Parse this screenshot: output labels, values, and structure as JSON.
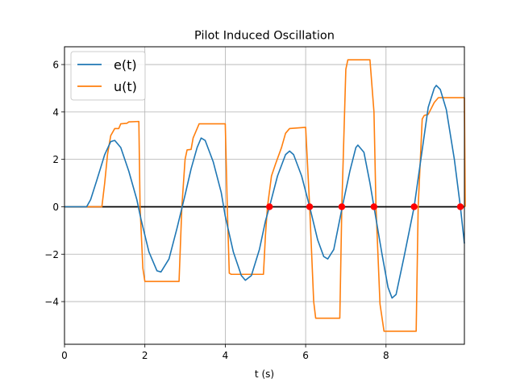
{
  "chart_data": {
    "type": "line",
    "title": "Pilot Induced Oscillation",
    "xlabel": "t (s)",
    "ylabel": "",
    "xlim": [
      0,
      9.95
    ],
    "ylim": [
      -5.8,
      6.75
    ],
    "xticks": [
      0,
      2,
      4,
      6,
      8
    ],
    "yticks": [
      -4,
      -2,
      0,
      2,
      4,
      6
    ],
    "grid": true,
    "legend": "top-left",
    "series": [
      {
        "name": "e(t)",
        "color": "#1f77b4",
        "points": [
          [
            0,
            0
          ],
          [
            0.55,
            0
          ],
          [
            0.65,
            0.3
          ],
          [
            0.8,
            1.1
          ],
          [
            1.0,
            2.2
          ],
          [
            1.15,
            2.75
          ],
          [
            1.25,
            2.8
          ],
          [
            1.4,
            2.5
          ],
          [
            1.6,
            1.5
          ],
          [
            1.8,
            0.3
          ],
          [
            1.9,
            -0.5
          ],
          [
            2.1,
            -1.9
          ],
          [
            2.3,
            -2.7
          ],
          [
            2.4,
            -2.75
          ],
          [
            2.6,
            -2.2
          ],
          [
            2.8,
            -0.9
          ],
          [
            3.0,
            0.5
          ],
          [
            3.15,
            1.6
          ],
          [
            3.3,
            2.5
          ],
          [
            3.4,
            2.9
          ],
          [
            3.5,
            2.8
          ],
          [
            3.7,
            1.9
          ],
          [
            3.9,
            0.6
          ],
          [
            4.0,
            -0.4
          ],
          [
            4.2,
            -1.9
          ],
          [
            4.4,
            -2.9
          ],
          [
            4.5,
            -3.1
          ],
          [
            4.65,
            -2.9
          ],
          [
            4.85,
            -1.8
          ],
          [
            5.0,
            -0.6
          ],
          [
            5.1,
            0
          ],
          [
            5.3,
            1.3
          ],
          [
            5.5,
            2.2
          ],
          [
            5.6,
            2.35
          ],
          [
            5.7,
            2.2
          ],
          [
            5.9,
            1.3
          ],
          [
            6.1,
            0
          ],
          [
            6.3,
            -1.4
          ],
          [
            6.45,
            -2.1
          ],
          [
            6.55,
            -2.2
          ],
          [
            6.7,
            -1.8
          ],
          [
            6.9,
            -0.1
          ],
          [
            7.1,
            1.5
          ],
          [
            7.25,
            2.5
          ],
          [
            7.3,
            2.6
          ],
          [
            7.45,
            2.3
          ],
          [
            7.6,
            1.0
          ],
          [
            7.7,
            0
          ],
          [
            7.9,
            -2.0
          ],
          [
            8.05,
            -3.4
          ],
          [
            8.15,
            -3.85
          ],
          [
            8.25,
            -3.7
          ],
          [
            8.45,
            -2.1
          ],
          [
            8.7,
            0
          ],
          [
            8.85,
            1.8
          ],
          [
            9.05,
            4.2
          ],
          [
            9.2,
            5.0
          ],
          [
            9.25,
            5.12
          ],
          [
            9.35,
            4.95
          ],
          [
            9.5,
            4.1
          ],
          [
            9.7,
            2.0
          ],
          [
            9.85,
            0
          ],
          [
            9.95,
            -1.55
          ]
        ]
      },
      {
        "name": "u(t)",
        "color": "#ff7f0e",
        "points": [
          [
            0,
            0
          ],
          [
            0.93,
            0
          ],
          [
            1.0,
            1.0
          ],
          [
            1.07,
            2.2
          ],
          [
            1.15,
            3.0
          ],
          [
            1.25,
            3.3
          ],
          [
            1.35,
            3.3
          ],
          [
            1.4,
            3.5
          ],
          [
            1.55,
            3.52
          ],
          [
            1.6,
            3.58
          ],
          [
            1.85,
            3.6
          ],
          [
            1.88,
            0
          ],
          [
            1.95,
            -2.6
          ],
          [
            2.0,
            -3.15
          ],
          [
            2.85,
            -3.15
          ],
          [
            2.92,
            0
          ],
          [
            3.0,
            2.0
          ],
          [
            3.05,
            2.4
          ],
          [
            3.15,
            2.42
          ],
          [
            3.2,
            2.9
          ],
          [
            3.3,
            3.3
          ],
          [
            3.35,
            3.5
          ],
          [
            4.0,
            3.5
          ],
          [
            4.05,
            0
          ],
          [
            4.1,
            -2.8
          ],
          [
            4.15,
            -2.85
          ],
          [
            4.95,
            -2.85
          ],
          [
            5.0,
            -1.2
          ],
          [
            5.05,
            0
          ],
          [
            5.15,
            1.3
          ],
          [
            5.25,
            1.8
          ],
          [
            5.4,
            2.5
          ],
          [
            5.5,
            3.1
          ],
          [
            5.6,
            3.3
          ],
          [
            6.0,
            3.35
          ],
          [
            6.1,
            0
          ],
          [
            6.2,
            -4.0
          ],
          [
            6.25,
            -4.7
          ],
          [
            6.85,
            -4.7
          ],
          [
            6.9,
            0
          ],
          [
            7.0,
            5.8
          ],
          [
            7.05,
            6.2
          ],
          [
            7.6,
            6.2
          ],
          [
            7.7,
            4.0
          ],
          [
            7.75,
            0
          ],
          [
            7.85,
            -4.1
          ],
          [
            7.95,
            -5.25
          ],
          [
            8.75,
            -5.25
          ],
          [
            8.8,
            0
          ],
          [
            8.9,
            3.7
          ],
          [
            8.95,
            3.85
          ],
          [
            9.05,
            3.9
          ],
          [
            9.2,
            4.4
          ],
          [
            9.3,
            4.6
          ],
          [
            9.95,
            4.6
          ],
          [
            9.97,
            0
          ]
        ]
      },
      {
        "name": "",
        "color": "#000000",
        "points": [
          [
            0,
            0
          ],
          [
            9.95,
            0
          ]
        ]
      }
    ],
    "markers": {
      "color": "#ff0000",
      "points": [
        [
          5.1,
          0
        ],
        [
          6.1,
          0
        ],
        [
          6.9,
          0
        ],
        [
          7.7,
          0
        ],
        [
          8.7,
          0
        ],
        [
          9.85,
          0
        ]
      ]
    }
  }
}
